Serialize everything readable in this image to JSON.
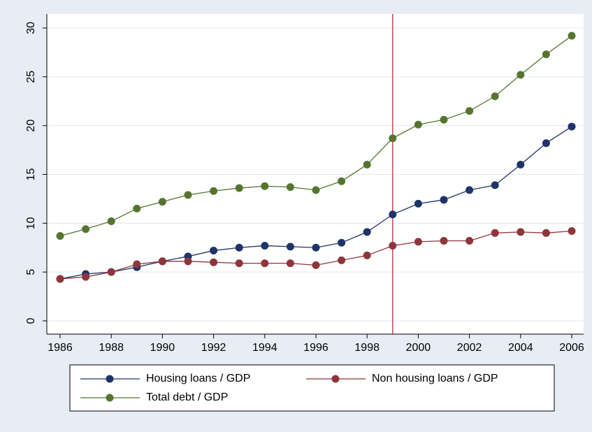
{
  "chart_data": {
    "type": "line",
    "x": [
      1986,
      1987,
      1988,
      1989,
      1990,
      1991,
      1992,
      1993,
      1994,
      1995,
      1996,
      1997,
      1998,
      1999,
      2000,
      2001,
      2002,
      2003,
      2004,
      2005,
      2006
    ],
    "series": [
      {
        "name": "Housing loans / GDP",
        "color": "#1f3468",
        "values": [
          4.3,
          4.8,
          5.0,
          5.5,
          6.1,
          6.6,
          7.2,
          7.5,
          7.7,
          7.6,
          7.5,
          8.0,
          9.1,
          10.9,
          12.0,
          12.4,
          13.4,
          13.9,
          16.0,
          18.2,
          19.9
        ]
      },
      {
        "name": "Non housing loans / GDP",
        "color": "#90353b",
        "values": [
          4.3,
          4.5,
          5.0,
          5.8,
          6.1,
          6.1,
          6.0,
          5.9,
          5.9,
          5.9,
          5.7,
          6.2,
          6.7,
          7.7,
          8.1,
          8.2,
          8.2,
          9.0,
          9.1,
          9.0,
          9.2
        ]
      },
      {
        "name": "Total debt / GDP",
        "color": "#55752f",
        "values": [
          8.7,
          9.4,
          10.2,
          11.5,
          12.2,
          12.9,
          13.3,
          13.6,
          13.8,
          13.7,
          13.4,
          14.3,
          16.0,
          18.7,
          20.1,
          20.6,
          21.5,
          23.0,
          25.2,
          27.3,
          29.2
        ]
      }
    ],
    "xlim": [
      1986,
      2006
    ],
    "xticks": [
      1986,
      1988,
      1990,
      1992,
      1994,
      1996,
      1998,
      2000,
      2002,
      2004,
      2006
    ],
    "ylim": [
      0,
      30
    ],
    "yticks": [
      0,
      5,
      10,
      15,
      20,
      25,
      30
    ],
    "vline": {
      "value": 1999,
      "color": "#c0143c"
    },
    "grid": true
  }
}
